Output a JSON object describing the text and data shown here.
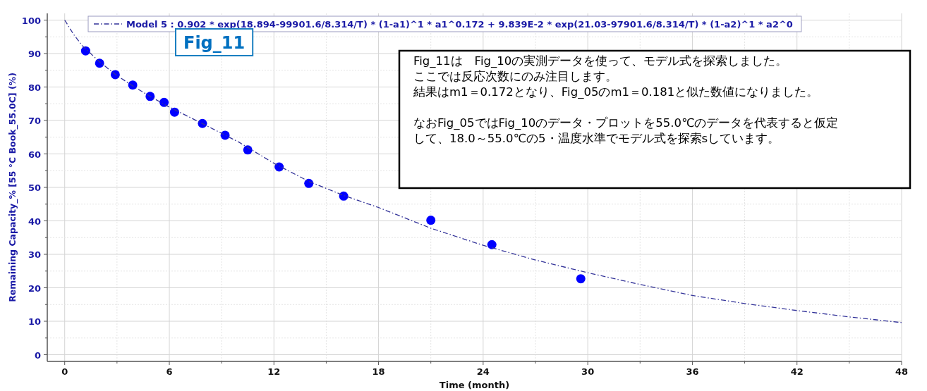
{
  "chart_data": {
    "type": "scatter",
    "xlabel": "Time (month)",
    "ylabel": "Remaining Capacity_% [55 °C Book_55.0C] (%)",
    "xlim": [
      -1,
      48
    ],
    "ylim": [
      -2,
      102
    ],
    "xticks": [
      0,
      {
        "value": 3,
        "label": null
      },
      6,
      {
        "value": 9,
        "label": null
      },
      12,
      {
        "value": 15,
        "label": null
      },
      18,
      {
        "value": 21,
        "label": null
      },
      24,
      {
        "value": 27,
        "label": null
      },
      30,
      {
        "value": 33,
        "label": null
      },
      36,
      {
        "value": 39,
        "label": null
      },
      42,
      {
        "value": 45,
        "label": null
      },
      48
    ],
    "yticks": [
      0,
      {
        "value": 5,
        "label": null
      },
      10,
      {
        "value": 15,
        "label": null
      },
      20,
      {
        "value": 25,
        "label": null
      },
      30,
      {
        "value": 35,
        "label": null
      },
      40,
      {
        "value": 45,
        "label": null
      },
      50,
      {
        "value": 55,
        "label": null
      },
      60,
      {
        "value": 65,
        "label": null
      },
      70,
      {
        "value": 75,
        "label": null
      },
      80,
      {
        "value": 85,
        "label": null
      },
      90,
      {
        "value": 95,
        "label": null
      },
      100
    ],
    "grid": true,
    "legend": "top",
    "series": [
      {
        "color": "#0000ff",
        "marker": "circle",
        "x": [
          1.2,
          2.0,
          2.9,
          3.9,
          4.9,
          5.7,
          6.3,
          7.9,
          9.2,
          10.5,
          12.3,
          14.0,
          16.0,
          21.0,
          24.5,
          29.6
        ],
        "values": [
          90.8,
          87.1,
          83.7,
          80.6,
          77.2,
          75.4,
          72.5,
          69.1,
          65.6,
          61.2,
          56.1,
          51.2,
          47.4,
          40.2,
          32.9,
          22.7
        ]
      },
      {
        "type": "line",
        "name": "Model 5 : 0.902 * exp(18.894-99901.6/8.314/T) * (1-a1)^1 * a1^0.172 + 9.839E-2 * exp(21.03-97901.6/8.314/T) * (1-a2)^1 * a2^0",
        "color": "#333399",
        "line_style": "dashed",
        "x": [
          0,
          0.5,
          1,
          2,
          3,
          4,
          5,
          6,
          8,
          10,
          12,
          14,
          16,
          18,
          21,
          24,
          27,
          30,
          33,
          36,
          39,
          42,
          45,
          48
        ],
        "values": [
          100,
          95.8,
          92.4,
          87.5,
          83.4,
          80.0,
          76.9,
          74.0,
          68.8,
          63.5,
          57.2,
          51.8,
          47.6,
          44.0,
          37.8,
          32.7,
          28.3,
          24.5,
          21.0,
          17.7,
          15.3,
          13.2,
          11.3,
          9.6
        ]
      }
    ],
    "annotations": [
      "Fig_11",
      "Fig_11は　Fig_10の実測データを使って、モデル式を探索しました。",
      "ここでは反応次数にのみ注目します。",
      "結果はm1＝0.172となり、Fig_05のm1＝0.181と似た数値になりました。",
      "なおFig_05ではFig_10のデータ・プロットを55.0℃のデータを代表すると仮定して、18.0～55.0℃の5・温度水準でモデル式を探索sしています。"
    ]
  }
}
